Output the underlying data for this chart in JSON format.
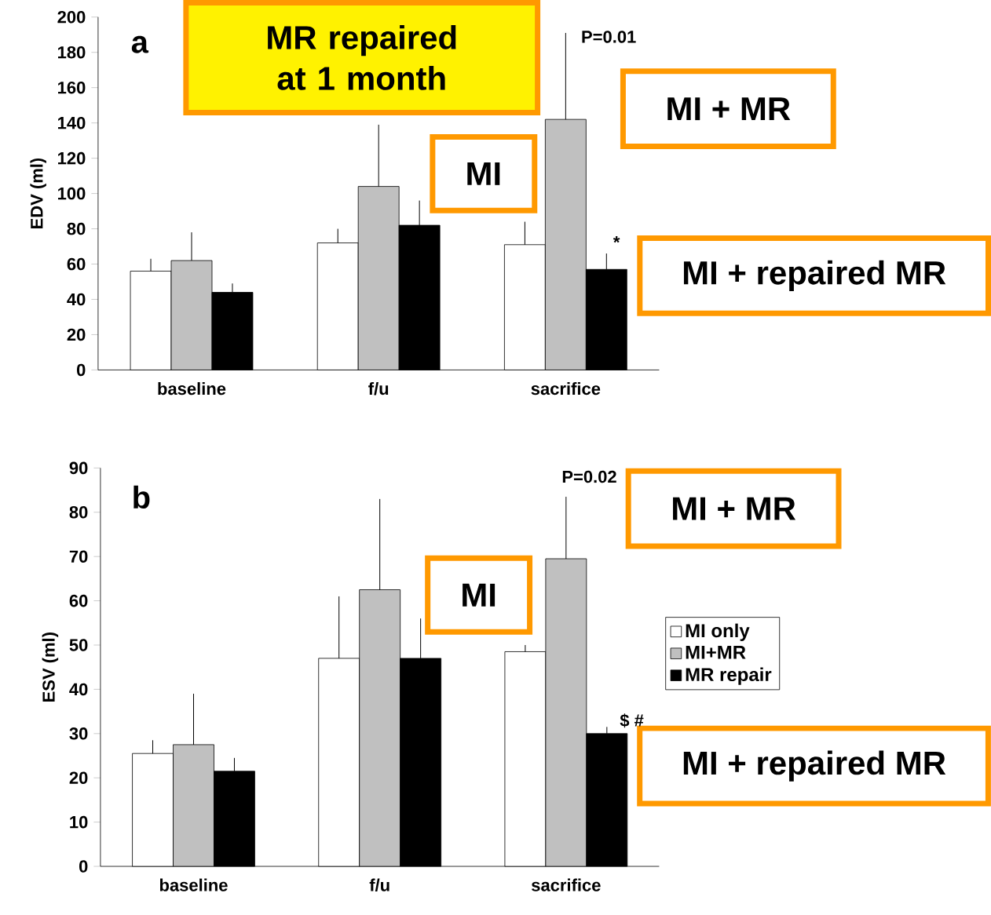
{
  "chart_data": [
    {
      "type": "bar",
      "ylabel": "EDV (ml)",
      "categories": [
        "baseline",
        "f/u",
        "sacrifice"
      ],
      "ylim": [
        0,
        200
      ],
      "yticks": [
        0,
        20,
        40,
        60,
        80,
        100,
        120,
        140,
        160,
        180,
        200
      ],
      "legend": false,
      "series": [
        {
          "color": "#ffffff",
          "values": [
            56,
            72,
            71
          ],
          "errors": [
            [
              56,
              63
            ],
            [
              72,
              80
            ],
            [
              71,
              84
            ]
          ]
        },
        {
          "color": "#c0c0c0",
          "values": [
            62,
            104,
            142
          ],
          "errors": [
            [
              62,
              78
            ],
            [
              104,
              139
            ],
            [
              142,
              191
            ]
          ]
        },
        {
          "color": "#000000",
          "values": [
            44,
            82,
            57
          ],
          "errors": [
            [
              44,
              49
            ],
            [
              82,
              96
            ],
            [
              57,
              66
            ]
          ]
        }
      ],
      "annotations": [
        "a",
        "MR repaired at 1 month",
        "MI",
        "MI + MR",
        "MI + repaired MR",
        "P=0.01",
        "*"
      ]
    },
    {
      "type": "bar",
      "ylabel": "ESV (ml)",
      "categories": [
        "baseline",
        "f/u",
        "sacrifice"
      ],
      "ylim": [
        0,
        90
      ],
      "yticks": [
        0,
        10,
        20,
        30,
        40,
        50,
        60,
        70,
        80,
        90
      ],
      "legend": "right",
      "series": [
        {
          "name": "MI only",
          "color": "#ffffff",
          "values": [
            25.5,
            47,
            48.5
          ],
          "errors": [
            [
              25.5,
              28.5
            ],
            [
              47,
              61
            ],
            [
              48.5,
              50
            ]
          ]
        },
        {
          "name": "MI+MR",
          "color": "#c0c0c0",
          "values": [
            27.5,
            62.5,
            69.5
          ],
          "errors": [
            [
              27.5,
              39
            ],
            [
              62.5,
              83
            ],
            [
              69.5,
              83.5
            ]
          ]
        },
        {
          "name": "MR repair",
          "color": "#000000",
          "values": [
            21.5,
            47,
            30
          ],
          "errors": [
            [
              21.5,
              24.5
            ],
            [
              47,
              56
            ],
            [
              30,
              31.5
            ]
          ]
        }
      ],
      "annotations": [
        "b",
        "MI",
        "MI + MR",
        "MI + repaired MR",
        "P=0.02",
        "$ #"
      ]
    }
  ]
}
